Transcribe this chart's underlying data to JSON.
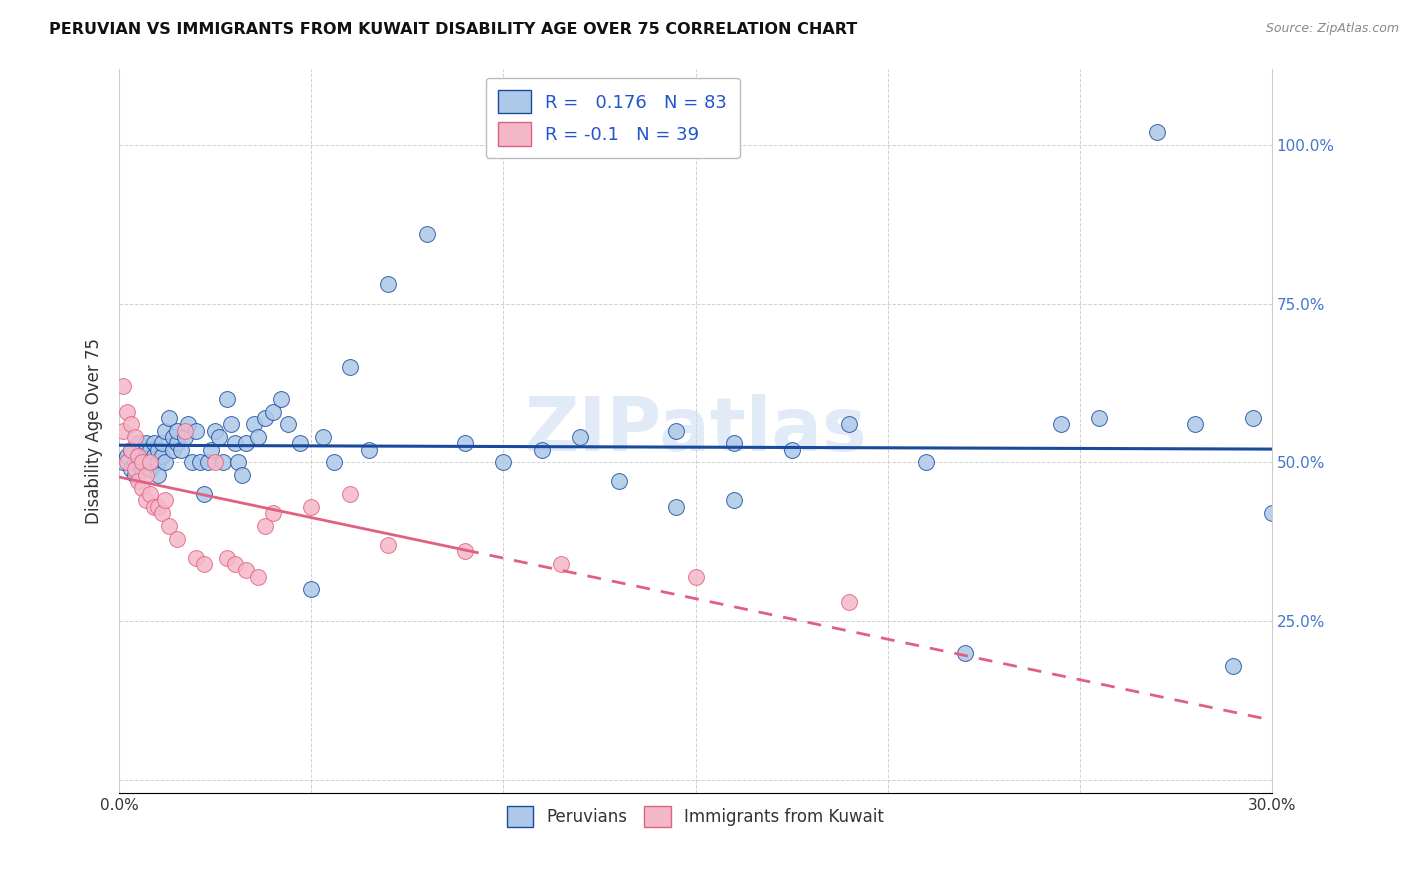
{
  "title": "PERUVIAN VS IMMIGRANTS FROM KUWAIT DISABILITY AGE OVER 75 CORRELATION CHART",
  "source": "Source: ZipAtlas.com",
  "ylabel": "Disability Age Over 75",
  "xlim": [
    0.0,
    0.3
  ],
  "ylim": [
    -0.02,
    1.12
  ],
  "xtick_positions": [
    0.0,
    0.05,
    0.1,
    0.15,
    0.2,
    0.25,
    0.3
  ],
  "xtick_labels": [
    "0.0%",
    "",
    "",
    "",
    "",
    "",
    "30.0%"
  ],
  "ytick_positions": [
    0.0,
    0.25,
    0.5,
    0.75,
    1.0
  ],
  "ytick_labels_right": [
    "",
    "25.0%",
    "50.0%",
    "75.0%",
    "100.0%"
  ],
  "blue_R": 0.176,
  "blue_N": 83,
  "pink_R": -0.1,
  "pink_N": 39,
  "blue_color": "#adc8e8",
  "pink_color": "#f5b8c8",
  "blue_line_color": "#1a4a9e",
  "pink_line_color": "#e06080",
  "watermark": "ZIPatlas",
  "blue_x": [
    0.001,
    0.002,
    0.003,
    0.003,
    0.004,
    0.004,
    0.005,
    0.005,
    0.005,
    0.006,
    0.006,
    0.007,
    0.007,
    0.007,
    0.008,
    0.008,
    0.008,
    0.009,
    0.009,
    0.01,
    0.01,
    0.01,
    0.011,
    0.011,
    0.012,
    0.012,
    0.013,
    0.014,
    0.014,
    0.015,
    0.015,
    0.016,
    0.017,
    0.018,
    0.019,
    0.02,
    0.021,
    0.022,
    0.023,
    0.024,
    0.025,
    0.026,
    0.027,
    0.028,
    0.029,
    0.03,
    0.031,
    0.032,
    0.033,
    0.035,
    0.036,
    0.038,
    0.04,
    0.042,
    0.044,
    0.047,
    0.05,
    0.053,
    0.056,
    0.06,
    0.065,
    0.07,
    0.08,
    0.09,
    0.1,
    0.11,
    0.12,
    0.13,
    0.145,
    0.16,
    0.175,
    0.19,
    0.21,
    0.22,
    0.245,
    0.255,
    0.27,
    0.28,
    0.29,
    0.295,
    0.3,
    0.145,
    0.16
  ],
  "blue_y": [
    0.5,
    0.51,
    0.49,
    0.52,
    0.5,
    0.48,
    0.51,
    0.53,
    0.5,
    0.49,
    0.52,
    0.51,
    0.5,
    0.53,
    0.5,
    0.52,
    0.49,
    0.51,
    0.53,
    0.5,
    0.48,
    0.52,
    0.51,
    0.53,
    0.5,
    0.55,
    0.57,
    0.54,
    0.52,
    0.53,
    0.55,
    0.52,
    0.54,
    0.56,
    0.5,
    0.55,
    0.5,
    0.45,
    0.5,
    0.52,
    0.55,
    0.54,
    0.5,
    0.6,
    0.56,
    0.53,
    0.5,
    0.48,
    0.53,
    0.56,
    0.54,
    0.57,
    0.58,
    0.6,
    0.56,
    0.53,
    0.3,
    0.54,
    0.5,
    0.65,
    0.52,
    0.78,
    0.86,
    0.53,
    0.5,
    0.52,
    0.54,
    0.47,
    0.55,
    0.53,
    0.52,
    0.56,
    0.5,
    0.2,
    0.56,
    0.57,
    1.02,
    0.56,
    0.18,
    0.57,
    0.42,
    0.43,
    0.44
  ],
  "pink_x": [
    0.001,
    0.001,
    0.002,
    0.002,
    0.003,
    0.003,
    0.004,
    0.004,
    0.005,
    0.005,
    0.006,
    0.006,
    0.007,
    0.007,
    0.008,
    0.008,
    0.009,
    0.01,
    0.011,
    0.012,
    0.013,
    0.015,
    0.017,
    0.02,
    0.022,
    0.025,
    0.028,
    0.03,
    0.033,
    0.036,
    0.038,
    0.04,
    0.05,
    0.06,
    0.07,
    0.09,
    0.115,
    0.15,
    0.19
  ],
  "pink_y": [
    0.62,
    0.55,
    0.58,
    0.5,
    0.56,
    0.52,
    0.54,
    0.49,
    0.51,
    0.47,
    0.5,
    0.46,
    0.48,
    0.44,
    0.5,
    0.45,
    0.43,
    0.43,
    0.42,
    0.44,
    0.4,
    0.38,
    0.55,
    0.35,
    0.34,
    0.5,
    0.35,
    0.34,
    0.33,
    0.32,
    0.4,
    0.42,
    0.43,
    0.45,
    0.37,
    0.36,
    0.34,
    0.32,
    0.28
  ]
}
